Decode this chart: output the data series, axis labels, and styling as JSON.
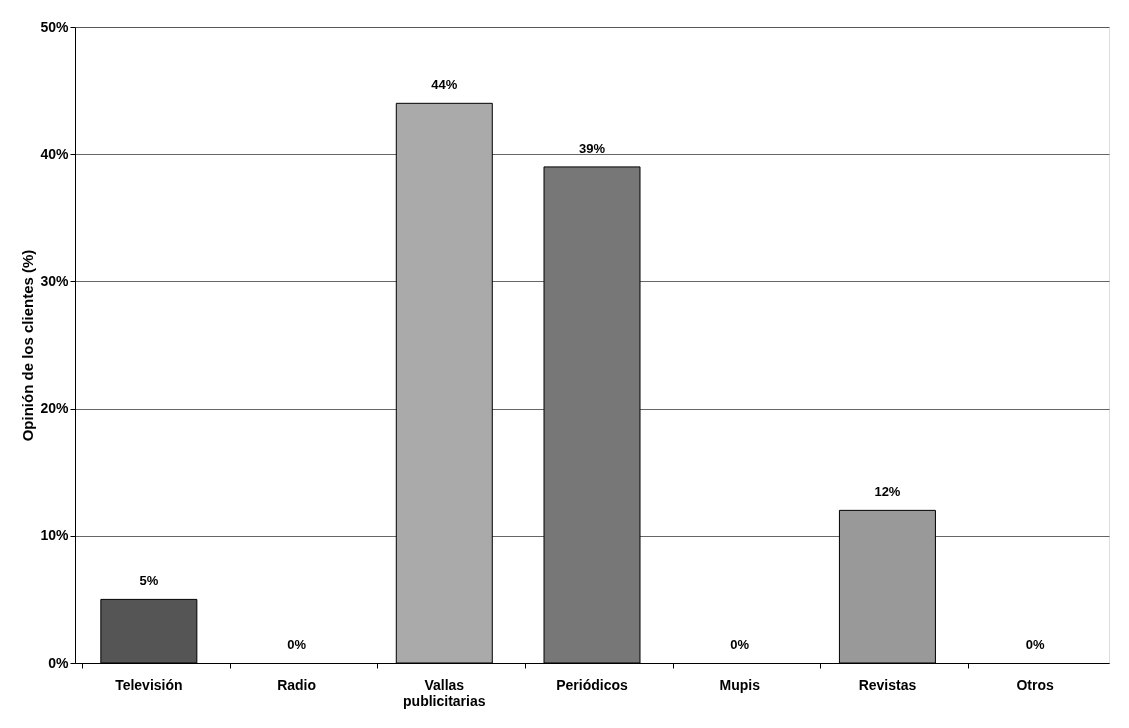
{
  "chart_data": {
    "type": "bar",
    "ylabel": "Opinión de los clientes (%)",
    "categories": [
      "Televisión",
      "Radio",
      "Vallas publicitarias",
      "Periódicos",
      "Mupis",
      "Revistas",
      "Otros"
    ],
    "values": [
      5,
      0,
      44,
      39,
      0,
      12,
      0
    ],
    "value_labels": [
      "5%",
      "0%",
      "44%",
      "39%",
      "0%",
      "12%",
      "0%"
    ],
    "colors": [
      "#555555",
      null,
      "#aaaaaa",
      "#777777",
      null,
      "#999999",
      null
    ],
    "ylim": [
      0,
      50
    ],
    "yticks": [
      {
        "value": 0,
        "label": "0%"
      },
      {
        "value": 10,
        "label": "10%"
      },
      {
        "value": 20,
        "label": "20%"
      },
      {
        "value": 30,
        "label": "30%"
      },
      {
        "value": 40,
        "label": "40%"
      },
      {
        "value": 50,
        "label": "50%"
      }
    ],
    "grid": "y"
  }
}
